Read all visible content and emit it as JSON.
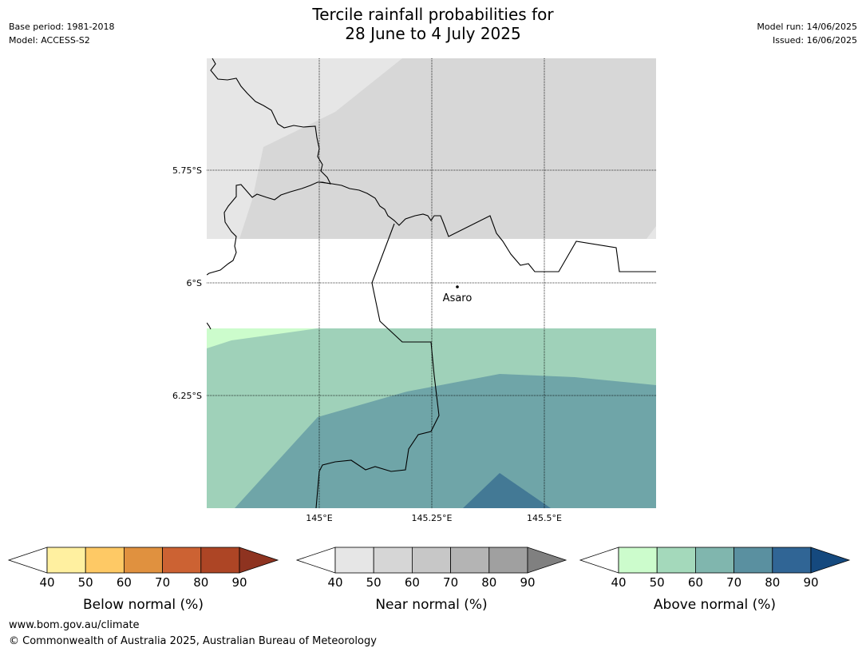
{
  "header": {
    "title_line1": "Tercile rainfall probabilities for",
    "title_line2": "28 June to 4 July 2025",
    "base_period": "Base period: 1981-2018",
    "model": "Model: ACCESS-S2",
    "model_run": "Model run: 14/06/2025",
    "issued": "Issued: 16/06/2025"
  },
  "map": {
    "lat_labels": [
      "5.75°S",
      "6°S",
      "6.25°S"
    ],
    "lon_labels": [
      "145°E",
      "145.25°E",
      "145.5°E"
    ],
    "place": {
      "name": "Asaro"
    },
    "colors": {
      "near_light": "#e6e6e6",
      "near_mid": "#d7d7d7",
      "above_40": "#ccfccc",
      "above_50": "#9fd1b9",
      "above_60": "#6fa5a8",
      "above_70": "#437995"
    }
  },
  "legends": [
    {
      "title": "Below normal (%)",
      "ticks": [
        "40",
        "50",
        "60",
        "70",
        "80",
        "90"
      ],
      "colors": [
        "#fff0a0",
        "#fec965",
        "#e0913f",
        "#cc6233",
        "#ad4525",
        "#8e3320"
      ]
    },
    {
      "title": "Near normal (%)",
      "ticks": [
        "40",
        "50",
        "60",
        "70",
        "80",
        "90"
      ],
      "colors": [
        "#e6e6e6",
        "#d6d6d6",
        "#c7c7c7",
        "#b4b4b4",
        "#a0a0a0",
        "#808080"
      ]
    },
    {
      "title": "Above normal (%)",
      "ticks": [
        "40",
        "50",
        "60",
        "70",
        "80",
        "90"
      ],
      "colors": [
        "#ccfccc",
        "#a4d9bb",
        "#80b6ae",
        "#5a90a0",
        "#306595",
        "#15497e"
      ]
    }
  ],
  "footer": {
    "website": "www.bom.gov.au/climate",
    "copyright": "© Commonwealth of Australia 2025, Australian Bureau of Meteorology"
  }
}
